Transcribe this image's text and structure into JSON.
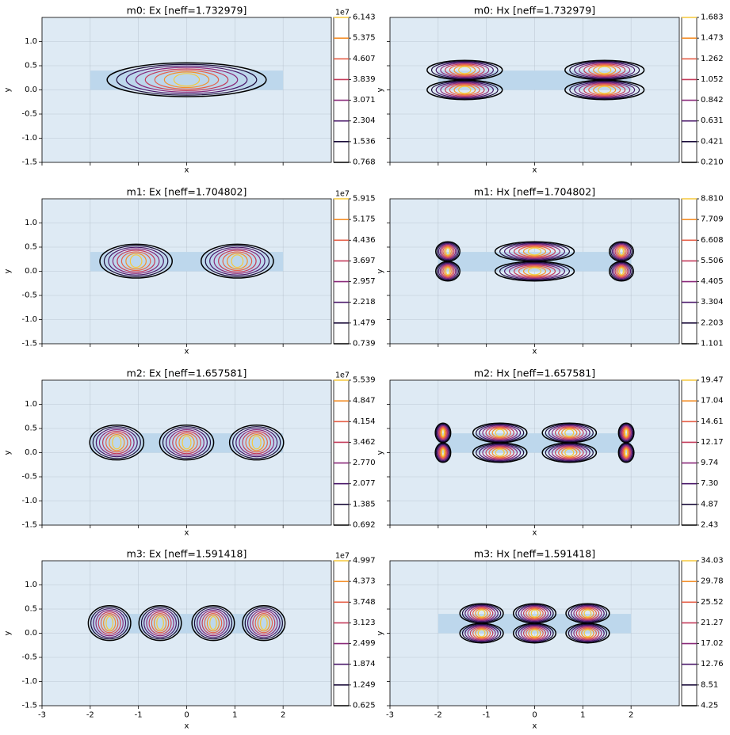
{
  "figure": {
    "background": "#ffffff",
    "axes_background": "#deeaf4",
    "core_color": "#bdd7ec",
    "contour_colors": [
      "#000000",
      "#1b0d3a",
      "#4b1a6b",
      "#8a2a7a",
      "#c43c5b",
      "#e6614a",
      "#f4902c",
      "#f6c93d"
    ]
  },
  "chart_data": [
    {
      "type": "contour",
      "title": "m0: Ex [neff=1.732979]",
      "xlabel": "x",
      "ylabel": "y",
      "xlim": [
        -3,
        3
      ],
      "ylim": [
        -1.5,
        1.5
      ],
      "xticks": [
        "-3",
        "-2",
        "-1",
        "0",
        "1",
        "2"
      ],
      "yticks": [
        "-1.5",
        "-1.0",
        "-0.5",
        "0.0",
        "0.5",
        "1.0"
      ],
      "show_xticklabels": false,
      "grid": true,
      "core": {
        "x": [
          -2,
          2
        ],
        "y": [
          0,
          0.4
        ]
      },
      "field": "Ex",
      "mode": 0,
      "colorbar": {
        "ticks": [
          "6.143",
          "5.375",
          "4.607",
          "3.839",
          "3.071",
          "2.304",
          "1.536",
          "0.768"
        ],
        "multiplier": "1e7"
      }
    },
    {
      "type": "contour",
      "title": "m0: Hx [neff=1.732979]",
      "xlabel": "x",
      "ylabel": "y",
      "xlim": [
        -3,
        3
      ],
      "ylim": [
        -1.5,
        1.5
      ],
      "xticks": [
        "-3",
        "-2",
        "-1",
        "0",
        "1",
        "2"
      ],
      "yticks": [
        "-1.5",
        "-1.0",
        "-0.5",
        "0.0",
        "0.5",
        "1.0"
      ],
      "show_xticklabels": false,
      "show_yticklabels": false,
      "grid": true,
      "core": {
        "x": [
          -2,
          2
        ],
        "y": [
          0,
          0.4
        ]
      },
      "field": "Hx",
      "mode": 0,
      "colorbar": {
        "ticks": [
          "1.683",
          "1.473",
          "1.262",
          "1.052",
          "0.842",
          "0.631",
          "0.421",
          "0.210"
        ],
        "multiplier": ""
      }
    },
    {
      "type": "contour",
      "title": "m1: Ex [neff=1.704802]",
      "xlabel": "x",
      "ylabel": "y",
      "xlim": [
        -3,
        3
      ],
      "ylim": [
        -1.5,
        1.5
      ],
      "xticks": [
        "-3",
        "-2",
        "-1",
        "0",
        "1",
        "2"
      ],
      "yticks": [
        "-1.5",
        "-1.0",
        "-0.5",
        "0.0",
        "0.5",
        "1.0"
      ],
      "show_xticklabels": false,
      "grid": true,
      "core": {
        "x": [
          -2,
          2
        ],
        "y": [
          0,
          0.4
        ]
      },
      "field": "Ex",
      "mode": 1,
      "colorbar": {
        "ticks": [
          "5.915",
          "5.175",
          "4.436",
          "3.697",
          "2.957",
          "2.218",
          "1.479",
          "0.739"
        ],
        "multiplier": "1e7"
      }
    },
    {
      "type": "contour",
      "title": "m1: Hx [neff=1.704802]",
      "xlabel": "x",
      "ylabel": "y",
      "xlim": [
        -3,
        3
      ],
      "ylim": [
        -1.5,
        1.5
      ],
      "xticks": [
        "-3",
        "-2",
        "-1",
        "0",
        "1",
        "2"
      ],
      "yticks": [
        "-1.5",
        "-1.0",
        "-0.5",
        "0.0",
        "0.5",
        "1.0"
      ],
      "show_xticklabels": false,
      "show_yticklabels": false,
      "grid": true,
      "core": {
        "x": [
          -2,
          2
        ],
        "y": [
          0,
          0.4
        ]
      },
      "field": "Hx",
      "mode": 1,
      "colorbar": {
        "ticks": [
          "8.810",
          "7.709",
          "6.608",
          "5.506",
          "4.405",
          "3.304",
          "2.203",
          "1.101"
        ],
        "multiplier": ""
      }
    },
    {
      "type": "contour",
      "title": "m2: Ex [neff=1.657581]",
      "xlabel": "x",
      "ylabel": "y",
      "xlim": [
        -3,
        3
      ],
      "ylim": [
        -1.5,
        1.5
      ],
      "xticks": [
        "-3",
        "-2",
        "-1",
        "0",
        "1",
        "2"
      ],
      "yticks": [
        "-1.5",
        "-1.0",
        "-0.5",
        "0.0",
        "0.5",
        "1.0"
      ],
      "show_xticklabels": false,
      "grid": true,
      "core": {
        "x": [
          -2,
          2
        ],
        "y": [
          0,
          0.4
        ]
      },
      "field": "Ex",
      "mode": 2,
      "colorbar": {
        "ticks": [
          "5.539",
          "4.847",
          "4.154",
          "3.462",
          "2.770",
          "2.077",
          "1.385",
          "0.692"
        ],
        "multiplier": "1e7"
      }
    },
    {
      "type": "contour",
      "title": "m2: Hx [neff=1.657581]",
      "xlabel": "x",
      "ylabel": "y",
      "xlim": [
        -3,
        3
      ],
      "ylim": [
        -1.5,
        1.5
      ],
      "xticks": [
        "-3",
        "-2",
        "-1",
        "0",
        "1",
        "2"
      ],
      "yticks": [
        "-1.5",
        "-1.0",
        "-0.5",
        "0.0",
        "0.5",
        "1.0"
      ],
      "show_xticklabels": false,
      "show_yticklabels": false,
      "grid": true,
      "core": {
        "x": [
          -2,
          2
        ],
        "y": [
          0,
          0.4
        ]
      },
      "field": "Hx",
      "mode": 2,
      "colorbar": {
        "ticks": [
          "19.47",
          "17.04",
          "14.61",
          "12.17",
          "9.74",
          "7.30",
          "4.87",
          "2.43"
        ],
        "multiplier": ""
      }
    },
    {
      "type": "contour",
      "title": "m3: Ex [neff=1.591418]",
      "xlabel": "x",
      "ylabel": "y",
      "xlim": [
        -3,
        3
      ],
      "ylim": [
        -1.5,
        1.5
      ],
      "xticks": [
        "-3",
        "-2",
        "-1",
        "0",
        "1",
        "2"
      ],
      "yticks": [
        "-1.5",
        "-1.0",
        "-0.5",
        "0.0",
        "0.5",
        "1.0"
      ],
      "show_xticklabels": true,
      "grid": true,
      "core": {
        "x": [
          -2,
          2
        ],
        "y": [
          0,
          0.4
        ]
      },
      "field": "Ex",
      "mode": 3,
      "colorbar": {
        "ticks": [
          "4.997",
          "4.373",
          "3.748",
          "3.123",
          "2.499",
          "1.874",
          "1.249",
          "0.625"
        ],
        "multiplier": "1e7"
      }
    },
    {
      "type": "contour",
      "title": "m3: Hx [neff=1.591418]",
      "xlabel": "x",
      "ylabel": "y",
      "xlim": [
        -3,
        3
      ],
      "ylim": [
        -1.5,
        1.5
      ],
      "xticks": [
        "-3",
        "-2",
        "-1",
        "0",
        "1",
        "2"
      ],
      "yticks": [
        "-1.5",
        "-1.0",
        "-0.5",
        "0.0",
        "0.5",
        "1.0"
      ],
      "show_xticklabels": true,
      "show_yticklabels": false,
      "grid": true,
      "core": {
        "x": [
          -2,
          2
        ],
        "y": [
          0,
          0.4
        ]
      },
      "field": "Hx",
      "mode": 3,
      "colorbar": {
        "ticks": [
          "34.03",
          "29.78",
          "25.52",
          "21.27",
          "17.02",
          "12.76",
          "8.51",
          "4.25"
        ],
        "multiplier": ""
      }
    }
  ]
}
